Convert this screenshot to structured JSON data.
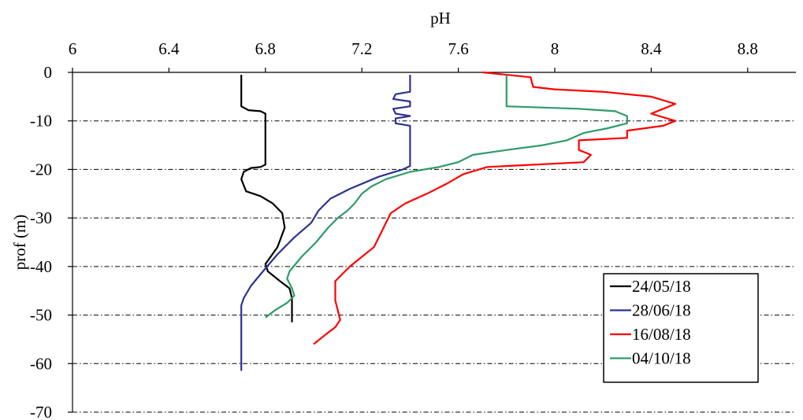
{
  "chart_data": {
    "type": "line",
    "title": "",
    "xlabel": "pH",
    "ylabel": "prof (m)",
    "xlim": [
      6,
      9
    ],
    "ylim": [
      -70,
      0
    ],
    "x_ticks": [
      6,
      6.4,
      6.8,
      7.2,
      7.6,
      8,
      8.4,
      8.8
    ],
    "x_tick_labels": [
      "6",
      "6.4",
      "6.8",
      "7.2",
      "7.6",
      "8",
      "8.4",
      "8.8"
    ],
    "y_ticks": [
      0,
      -10,
      -20,
      -30,
      -40,
      -50,
      -60,
      -70
    ],
    "y_tick_labels": [
      "0",
      "-10",
      "-20",
      "-30",
      "-40",
      "-50",
      "-60",
      "-70"
    ],
    "x_axis_position": "top",
    "grid": "horizontal dash-dot",
    "legend_position": "bottom-right",
    "series": [
      {
        "name": "24/05/18",
        "color": "#000000",
        "points": [
          [
            6.7,
            -0.5
          ],
          [
            6.7,
            -7
          ],
          [
            6.73,
            -7.8
          ],
          [
            6.78,
            -8
          ],
          [
            6.8,
            -8.5
          ],
          [
            6.8,
            -19
          ],
          [
            6.78,
            -19.5
          ],
          [
            6.74,
            -19.7
          ],
          [
            6.71,
            -20.5
          ],
          [
            6.7,
            -22
          ],
          [
            6.72,
            -24.5
          ],
          [
            6.78,
            -25.5
          ],
          [
            6.83,
            -27
          ],
          [
            6.87,
            -29
          ],
          [
            6.88,
            -32
          ],
          [
            6.85,
            -36
          ],
          [
            6.8,
            -39.5
          ],
          [
            6.81,
            -41
          ],
          [
            6.86,
            -43
          ],
          [
            6.9,
            -44.5
          ],
          [
            6.91,
            -46.5
          ],
          [
            6.91,
            -51.5
          ]
        ]
      },
      {
        "name": "28/06/18",
        "color": "#2e3192",
        "points": [
          [
            7.4,
            -0.5
          ],
          [
            7.4,
            -4
          ],
          [
            7.34,
            -4.5
          ],
          [
            7.33,
            -5.5
          ],
          [
            7.4,
            -6
          ],
          [
            7.4,
            -7
          ],
          [
            7.33,
            -7.5
          ],
          [
            7.34,
            -8.5
          ],
          [
            7.4,
            -9
          ],
          [
            7.34,
            -9.5
          ],
          [
            7.34,
            -10.5
          ],
          [
            7.4,
            -11
          ],
          [
            7.4,
            -19.3
          ],
          [
            7.37,
            -20
          ],
          [
            7.27,
            -21.5
          ],
          [
            7.15,
            -24
          ],
          [
            7.07,
            -26
          ],
          [
            7.02,
            -28.5
          ],
          [
            6.99,
            -31
          ],
          [
            6.92,
            -34
          ],
          [
            6.85,
            -37.5
          ],
          [
            6.79,
            -41
          ],
          [
            6.74,
            -44
          ],
          [
            6.71,
            -46.5
          ],
          [
            6.7,
            -48
          ],
          [
            6.7,
            -61.5
          ]
        ]
      },
      {
        "name": "16/08/18",
        "color": "#ff0000",
        "points": [
          [
            7.7,
            0
          ],
          [
            7.9,
            -1
          ],
          [
            7.91,
            -3
          ],
          [
            8.0,
            -3.5
          ],
          [
            8.2,
            -4
          ],
          [
            8.4,
            -5
          ],
          [
            8.5,
            -6.5
          ],
          [
            8.45,
            -7.5
          ],
          [
            8.4,
            -8.5
          ],
          [
            8.5,
            -10
          ],
          [
            8.45,
            -11
          ],
          [
            8.3,
            -12
          ],
          [
            8.3,
            -13.5
          ],
          [
            8.1,
            -14
          ],
          [
            8.1,
            -16
          ],
          [
            8.15,
            -17
          ],
          [
            8.12,
            -18.5
          ],
          [
            7.72,
            -19.5
          ],
          [
            7.62,
            -21
          ],
          [
            7.55,
            -23
          ],
          [
            7.47,
            -25
          ],
          [
            7.38,
            -27
          ],
          [
            7.32,
            -29
          ],
          [
            7.3,
            -31
          ],
          [
            7.28,
            -33
          ],
          [
            7.25,
            -36
          ],
          [
            7.2,
            -38
          ],
          [
            7.15,
            -40
          ],
          [
            7.12,
            -41.5
          ],
          [
            7.09,
            -43
          ],
          [
            7.09,
            -47
          ],
          [
            7.1,
            -49
          ],
          [
            7.11,
            -51
          ],
          [
            7.09,
            -52.5
          ],
          [
            7.05,
            -54
          ],
          [
            7.0,
            -56
          ]
        ]
      },
      {
        "name": "04/10/18",
        "color": "#2e9a6a",
        "points": [
          [
            7.8,
            -0.5
          ],
          [
            7.8,
            -7
          ],
          [
            8.1,
            -7.5
          ],
          [
            8.25,
            -8
          ],
          [
            8.3,
            -9
          ],
          [
            8.3,
            -10.5
          ],
          [
            8.22,
            -11.5
          ],
          [
            8.12,
            -12.5
          ],
          [
            8.05,
            -14
          ],
          [
            7.95,
            -15
          ],
          [
            7.8,
            -16
          ],
          [
            7.66,
            -17
          ],
          [
            7.6,
            -18.5
          ],
          [
            7.52,
            -19.5
          ],
          [
            7.4,
            -20.5
          ],
          [
            7.3,
            -22
          ],
          [
            7.24,
            -23.5
          ],
          [
            7.2,
            -25
          ],
          [
            7.17,
            -27
          ],
          [
            7.14,
            -28.5
          ],
          [
            7.1,
            -30
          ],
          [
            7.06,
            -32
          ],
          [
            7.01,
            -35
          ],
          [
            6.95,
            -38
          ],
          [
            6.9,
            -41
          ],
          [
            6.89,
            -42.5
          ],
          [
            6.91,
            -44.5
          ],
          [
            6.92,
            -46
          ],
          [
            6.89,
            -47.5
          ],
          [
            6.84,
            -49
          ],
          [
            6.8,
            -50.5
          ]
        ]
      }
    ]
  }
}
